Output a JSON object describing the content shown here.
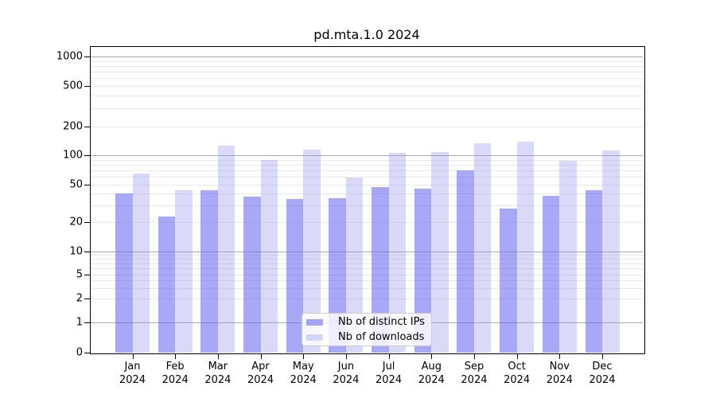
{
  "title": "pd.mta.1.0 2024",
  "chart_data": {
    "type": "bar",
    "title": "pd.mta.1.0 2024",
    "categories": [
      "Jan",
      "Feb",
      "Mar",
      "Apr",
      "May",
      "Jun",
      "Jul",
      "Aug",
      "Sep",
      "Oct",
      "Nov",
      "Dec"
    ],
    "year": "2024",
    "series": [
      {
        "name": "Nb of distinct IPs",
        "values": [
          40,
          23,
          44,
          37,
          35,
          36,
          47,
          45,
          70,
          28,
          38,
          44
        ],
        "color": "#6e6ef0",
        "alpha": 0.6
      },
      {
        "name": "Nb of downloads",
        "values": [
          65,
          44,
          125,
          90,
          114,
          59,
          106,
          108,
          134,
          140,
          87,
          112
        ],
        "color": "#8c8ceb",
        "alpha": 0.33
      }
    ],
    "xlabel": "",
    "ylabel": "",
    "yscale": "symlog",
    "ylim": [
      0,
      1200
    ],
    "yticks": [
      0,
      1,
      2,
      5,
      10,
      20,
      50,
      100,
      200,
      500,
      1000
    ],
    "major_gridline_values": [
      1,
      10,
      100,
      1000
    ],
    "grid": "both",
    "legend_position": "lower center",
    "colors": {
      "major_grid": "#aaaaaa",
      "minor_grid": "#e9e9e9",
      "axis": "#000000",
      "text": "#000000",
      "legend_border": "#cccccc",
      "background": "#ffffff"
    }
  }
}
